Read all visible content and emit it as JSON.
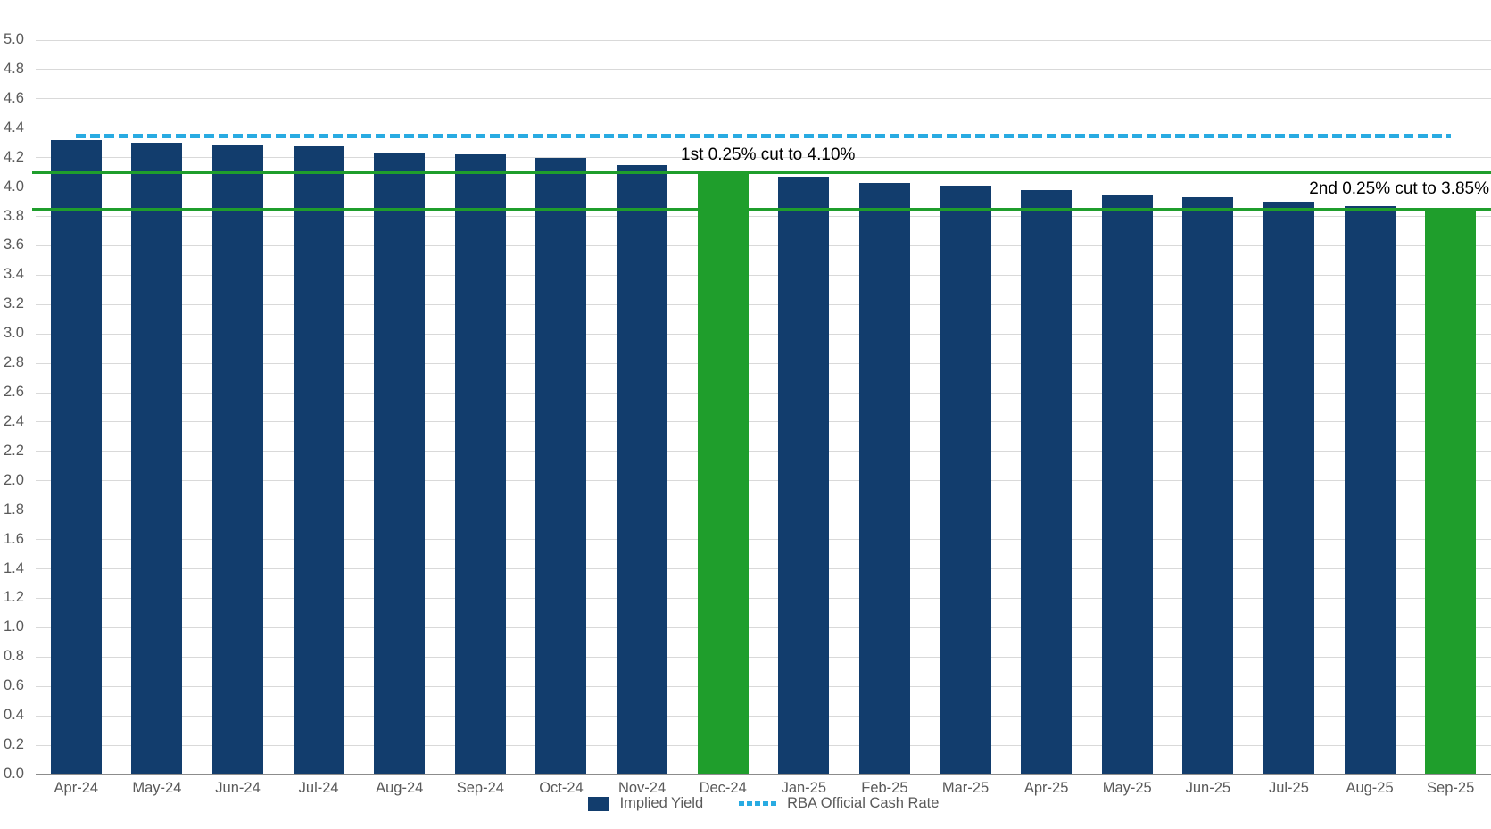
{
  "chart_data": {
    "type": "bar",
    "title": "",
    "xlabel": "",
    "ylabel": "",
    "categories": [
      "Apr-24",
      "May-24",
      "Jun-24",
      "Jul-24",
      "Aug-24",
      "Sep-24",
      "Oct-24",
      "Nov-24",
      "Dec-24",
      "Jan-25",
      "Feb-25",
      "Mar-25",
      "Apr-25",
      "May-25",
      "Jun-25",
      "Jul-25",
      "Aug-25",
      "Sep-25"
    ],
    "series": [
      {
        "name": "Implied Yield",
        "values": [
          4.32,
          4.3,
          4.29,
          4.28,
          4.23,
          4.22,
          4.2,
          4.15,
          4.1,
          4.07,
          4.03,
          4.01,
          3.98,
          3.95,
          3.93,
          3.9,
          3.87,
          3.85
        ],
        "color": "#123d6d",
        "highlight_color": "#1f9e2c",
        "highlight_indices": [
          8,
          17
        ]
      }
    ],
    "rba_line": {
      "name": "RBA Official Cash Rate",
      "value": 4.35,
      "color": "#29abe2",
      "style": "dashed"
    },
    "reference_lines": [
      {
        "label": "1st 0.25% cut to 4.10%",
        "value": 4.1,
        "color": "#1f9e2c"
      },
      {
        "label": "2nd 0.25% cut to 3.85%",
        "value": 3.85,
        "color": "#1f9e2c"
      }
    ],
    "ylim": [
      0,
      5
    ],
    "ytick_step": 0.2,
    "yticks": [
      "0.0",
      "0.2",
      "0.4",
      "0.6",
      "0.8",
      "1.0",
      "1.2",
      "1.4",
      "1.6",
      "1.8",
      "2.0",
      "2.2",
      "2.4",
      "2.6",
      "2.8",
      "3.0",
      "3.2",
      "3.4",
      "3.6",
      "3.8",
      "4.0",
      "4.2",
      "4.4",
      "4.6",
      "4.8",
      "5.0"
    ],
    "grid": true,
    "legend_position": "bottom",
    "colors": {
      "gridline": "#d9d9d9",
      "axis_line": "#8c8c8c",
      "tick_text": "#595959",
      "annotation_text": "#000000"
    }
  }
}
